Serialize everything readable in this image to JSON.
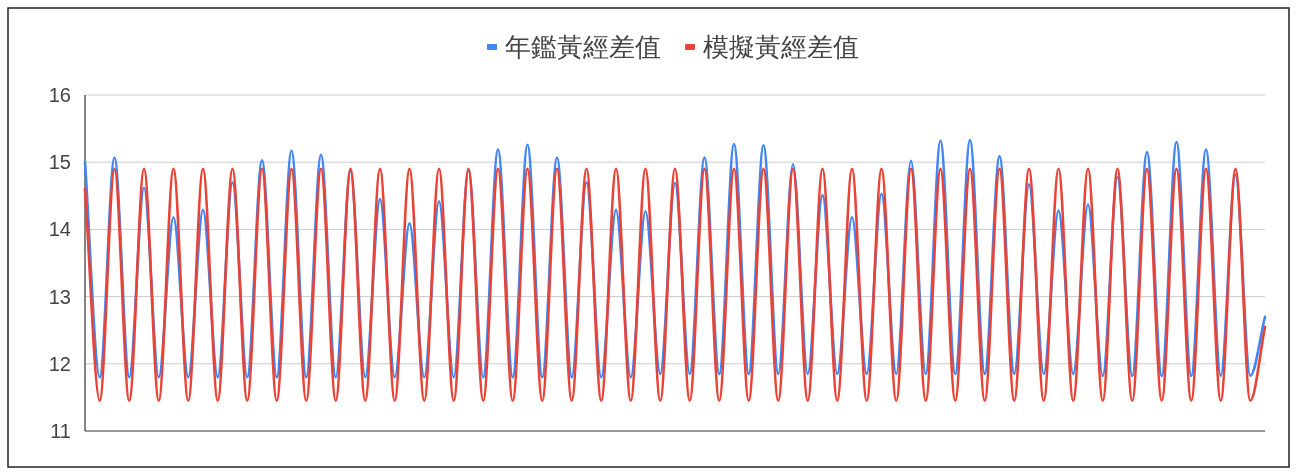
{
  "chart_data": {
    "type": "line",
    "categories": [
      null,
      null,
      null,
      null,
      null,
      null,
      null,
      null,
      null,
      null,
      null,
      null,
      null,
      null,
      null,
      null,
      null,
      null,
      null,
      null,
      null,
      null,
      null,
      null,
      null,
      null,
      null,
      null,
      null,
      null,
      null,
      null,
      null,
      null,
      null,
      null,
      null,
      null,
      null,
      null,
      null,
      null,
      null,
      null,
      null,
      null,
      null,
      null,
      null,
      null,
      null,
      null,
      null,
      null,
      null,
      null,
      null,
      null,
      null,
      null,
      null,
      null,
      null,
      null,
      null,
      null,
      null,
      null,
      null,
      null,
      null,
      null,
      null,
      null,
      null,
      null,
      null,
      null,
      null,
      null,
      null
    ],
    "series": [
      {
        "name": "年鑑黃經差值",
        "color": "#4285f4",
        "values": [
          15.0,
          11.8,
          15.07,
          11.8,
          14.62,
          11.8,
          14.18,
          11.8,
          14.29,
          11.8,
          14.7,
          11.8,
          15.03,
          11.8,
          15.17,
          11.8,
          15.11,
          11.8,
          14.87,
          11.8,
          14.45,
          11.8,
          14.09,
          11.8,
          14.42,
          11.8,
          14.88,
          11.8,
          15.19,
          11.8,
          15.26,
          11.8,
          15.07,
          11.8,
          14.7,
          11.8,
          14.29,
          11.8,
          14.27,
          11.85,
          14.69,
          11.85,
          15.07,
          11.85,
          15.27,
          11.85,
          15.25,
          11.85,
          14.97,
          11.85,
          14.51,
          11.85,
          14.18,
          11.85,
          14.53,
          11.85,
          15.02,
          11.85,
          15.32,
          11.85,
          15.33,
          11.85,
          15.09,
          11.85,
          14.67,
          11.85,
          14.28,
          11.85,
          14.37,
          11.82,
          14.78,
          11.82,
          15.15,
          11.82,
          15.3,
          11.82,
          15.19,
          11.82,
          14.81,
          11.82,
          12.7
        ]
      },
      {
        "name": "模擬黃經差值",
        "color": "#ea4335",
        "values": [
          14.6,
          11.45,
          14.9,
          11.45,
          14.9,
          11.45,
          14.9,
          11.45,
          14.9,
          11.45,
          14.9,
          11.45,
          14.9,
          11.45,
          14.9,
          11.45,
          14.9,
          11.45,
          14.9,
          11.45,
          14.9,
          11.45,
          14.9,
          11.45,
          14.9,
          11.45,
          14.9,
          11.45,
          14.9,
          11.45,
          14.9,
          11.45,
          14.9,
          11.45,
          14.9,
          11.45,
          14.9,
          11.45,
          14.9,
          11.45,
          14.9,
          11.45,
          14.9,
          11.45,
          14.9,
          11.45,
          14.9,
          11.45,
          14.9,
          11.45,
          14.9,
          11.45,
          14.9,
          11.45,
          14.9,
          11.45,
          14.9,
          11.45,
          14.9,
          11.45,
          14.9,
          11.45,
          14.9,
          11.45,
          14.9,
          11.45,
          14.9,
          11.45,
          14.9,
          11.45,
          14.9,
          11.45,
          14.9,
          11.45,
          14.9,
          11.45,
          14.9,
          11.45,
          14.9,
          11.45,
          12.55
        ]
      }
    ],
    "ylim": [
      11,
      16
    ],
    "yticks": [
      11,
      12,
      13,
      14,
      15,
      16
    ],
    "grid": "y",
    "legend": "top"
  }
}
